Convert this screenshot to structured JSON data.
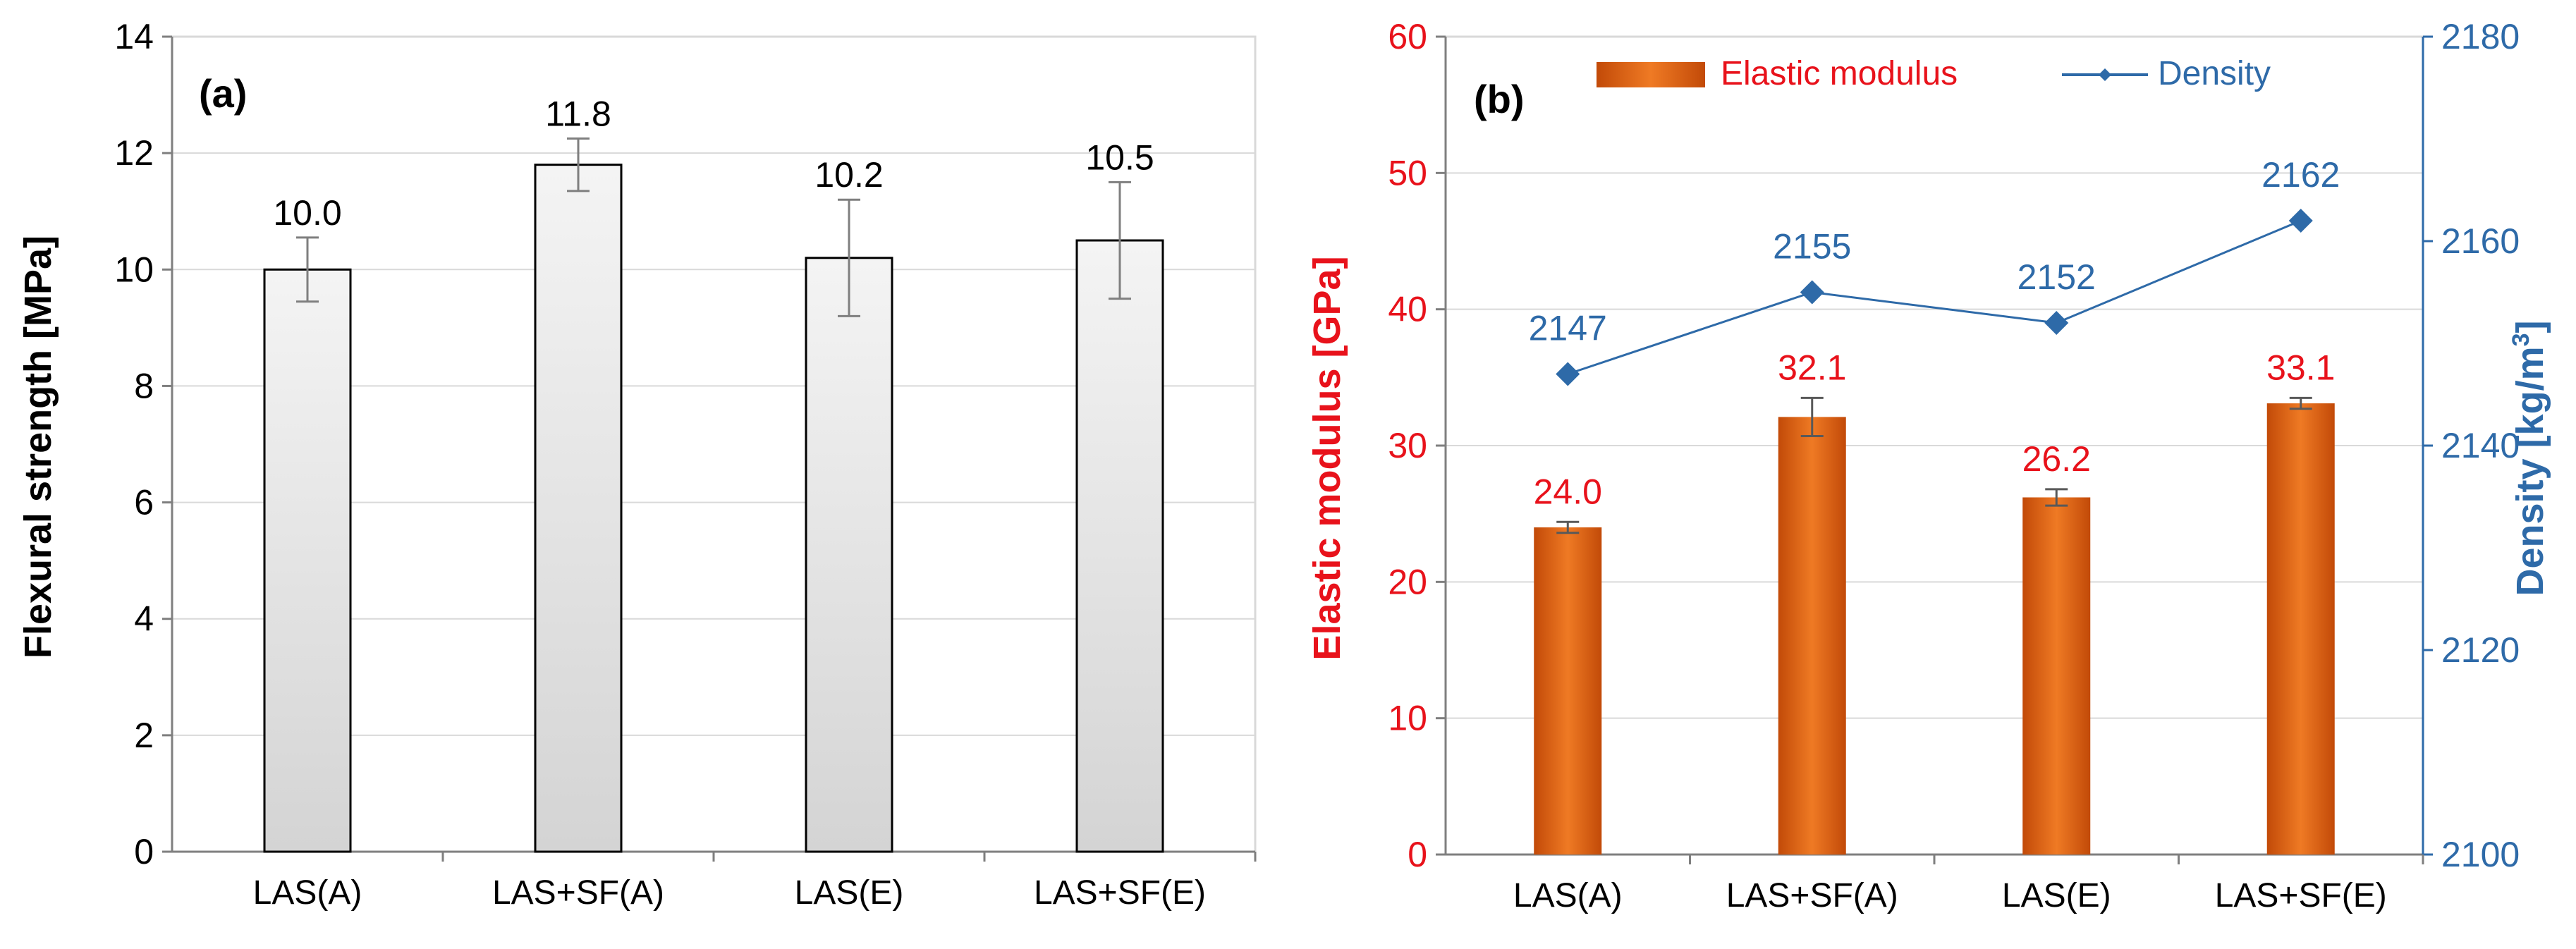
{
  "chart_data": [
    {
      "type": "bar",
      "panel_label": "(a)",
      "categories": [
        "LAS(A)",
        "LAS+SF(A)",
        "LAS(E)",
        "LAS+SF(E)"
      ],
      "values": [
        10.0,
        11.8,
        10.2,
        10.5
      ],
      "value_labels": [
        "10.0",
        "11.8",
        "10.2",
        "10.5"
      ],
      "error": [
        0.55,
        0.45,
        1.0,
        1.0
      ],
      "ylabel": "Flexural strength [MPa]",
      "ylim": [
        0,
        14
      ],
      "yticks": [
        0,
        2,
        4,
        6,
        8,
        10,
        12,
        14
      ],
      "ytick_labels": [
        "0",
        "2",
        "4",
        "6",
        "8",
        "10",
        "12",
        "14"
      ],
      "grid": true,
      "bar_style": "white-to-gray gradient, black outline"
    },
    {
      "type": "bar",
      "panel_label": "(b)",
      "categories": [
        "LAS(A)",
        "LAS+SF(A)",
        "LAS(E)",
        "LAS+SF(E)"
      ],
      "series": [
        {
          "name": "Elastic modulus",
          "type": "bar",
          "axis": "left",
          "values": [
            24.0,
            32.1,
            26.2,
            33.1
          ],
          "value_labels": [
            "24.0",
            "32.1",
            "26.2",
            "33.1"
          ],
          "error": [
            0.4,
            1.4,
            0.6,
            0.4
          ],
          "color": "#e0600e"
        },
        {
          "name": "Density",
          "type": "line",
          "axis": "right",
          "marker": "diamond",
          "values": [
            2147,
            2155,
            2152,
            2162
          ],
          "value_labels": [
            "2147",
            "2155",
            "2152",
            "2162"
          ],
          "color": "#2e6aa8"
        }
      ],
      "ylabel": "Elastic modulus [GPa]",
      "ylabel_color": "#e8121b",
      "ylim": [
        0,
        60
      ],
      "yticks": [
        0,
        10,
        20,
        30,
        40,
        50,
        60
      ],
      "ytick_labels": [
        "0",
        "10",
        "20",
        "30",
        "40",
        "50",
        "60"
      ],
      "y2label_text": "Density [kg/m",
      "y2label_superscript": "3",
      "y2label_end": "]",
      "y2label_color": "#2e6aa8",
      "y2lim": [
        2100,
        2180
      ],
      "y2ticks": [
        2100,
        2120,
        2140,
        2160,
        2180
      ],
      "y2tick_labels": [
        "2100",
        "2120",
        "2140",
        "2160",
        "2180"
      ],
      "grid": true,
      "legend_position": "top"
    }
  ],
  "colors": {
    "axis": "#7f7f7f",
    "grid": "#d9d9d9",
    "text": "#000000",
    "modulus": "#e8121b",
    "modulus_bar": "#e0600e",
    "density": "#2e6aa8",
    "errorbar_a": "#7f7f7f",
    "errorbar_b": "#595959"
  }
}
